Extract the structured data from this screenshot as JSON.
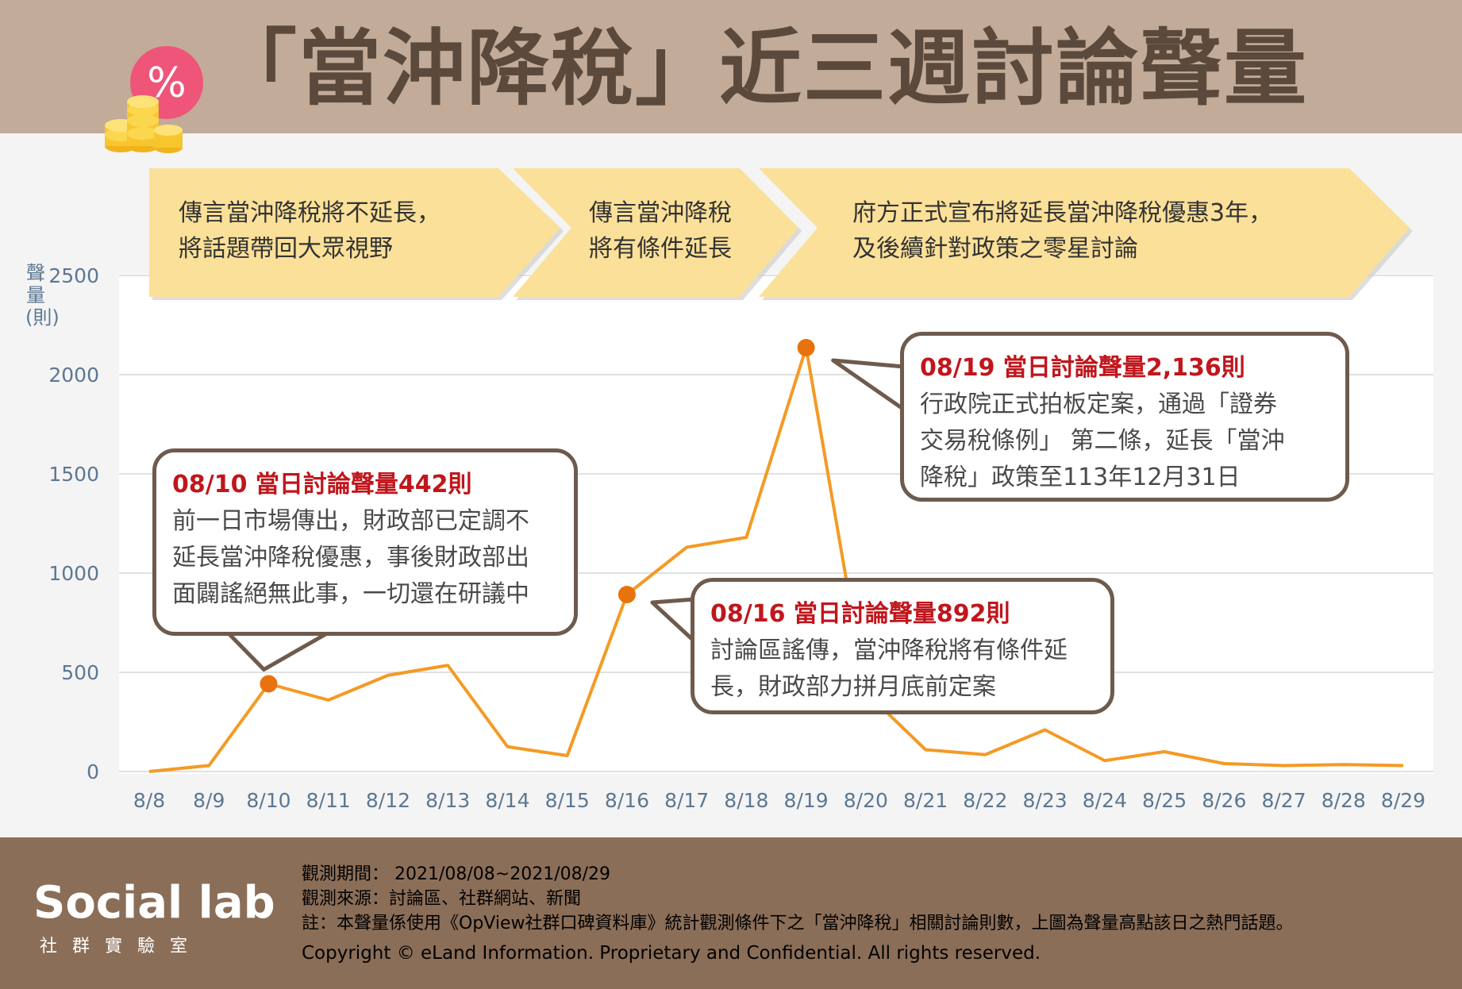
{
  "title": "「當沖降稅」近三週討論聲量",
  "colors": {
    "line": "#f49a24",
    "marker": "#e8730c",
    "axis_text": "#5c7792",
    "phase_fill": "#fbe099",
    "header_bg": "#c2ab98",
    "footer_bg": "#8b6e58",
    "highlight": "#c0161c"
  },
  "icons": {
    "percent_badge": "percent-coin-icon"
  },
  "badge_text": "%",
  "phases": [
    {
      "lines": [
        "傳言當沖降稅將不延長，",
        "將話題帶回大眾視野"
      ]
    },
    {
      "lines": [
        "傳言當沖降稅",
        "將有條件延長"
      ]
    },
    {
      "lines": [
        "府方正式宣布將延長當沖降稅優惠3年，",
        "及後續針對政策之零星討論"
      ]
    }
  ],
  "callouts": [
    {
      "headline": "08/10 當日討論聲量442則",
      "lines": [
        "前一日市場傳出，財政部已定調不",
        "延長當沖降稅優惠，事後財政部出",
        "面闢謠絕無此事，一切還在研議中"
      ]
    },
    {
      "headline": "08/16 當日討論聲量892則",
      "lines": [
        "討論區謠傳，當沖降稅將有條件延",
        "長，財政部力拼月底前定案"
      ]
    },
    {
      "headline": "08/19 當日討論聲量2,136則",
      "lines": [
        "行政院正式拍板定案，通過「證券",
        "交易稅條例」 第二條，延長「當沖",
        "降稅」政策至113年12月31日"
      ]
    }
  ],
  "chart_data": {
    "type": "line",
    "title": "「當沖降稅」近三週討論聲量",
    "ylabel": "聲量(則)",
    "xlabel": "",
    "ylim": [
      0,
      2500
    ],
    "yticks": [
      0,
      500,
      1000,
      1500,
      2000,
      2500
    ],
    "grid": true,
    "categories": [
      "8/8",
      "8/9",
      "8/10",
      "8/11",
      "8/12",
      "8/13",
      "8/14",
      "8/15",
      "8/16",
      "8/17",
      "8/18",
      "8/19",
      "8/20",
      "8/21",
      "8/22",
      "8/23",
      "8/24",
      "8/25",
      "8/26",
      "8/27",
      "8/28",
      "8/29"
    ],
    "values": [
      0,
      30,
      442,
      360,
      485,
      535,
      125,
      80,
      892,
      1130,
      1180,
      2136,
      400,
      110,
      85,
      210,
      55,
      100,
      40,
      30,
      35,
      30
    ],
    "highlighted": [
      "8/10",
      "8/16",
      "8/19"
    ]
  },
  "footer": {
    "logo_text": "Social lab",
    "logo_sub": "社群實驗室",
    "period": "觀測期間： 2021/08/08~2021/08/29",
    "source": "觀測來源：討論區、社群網站、新聞",
    "note": "註：本聲量係使用《OpView社群口碑資料庫》統計觀測條件下之「當沖降稅」相關討論則數，上圖為聲量高點該日之熱門話題。",
    "copyright": "Copyright © eLand Information. Proprietary and Confidential. All rights reserved."
  }
}
